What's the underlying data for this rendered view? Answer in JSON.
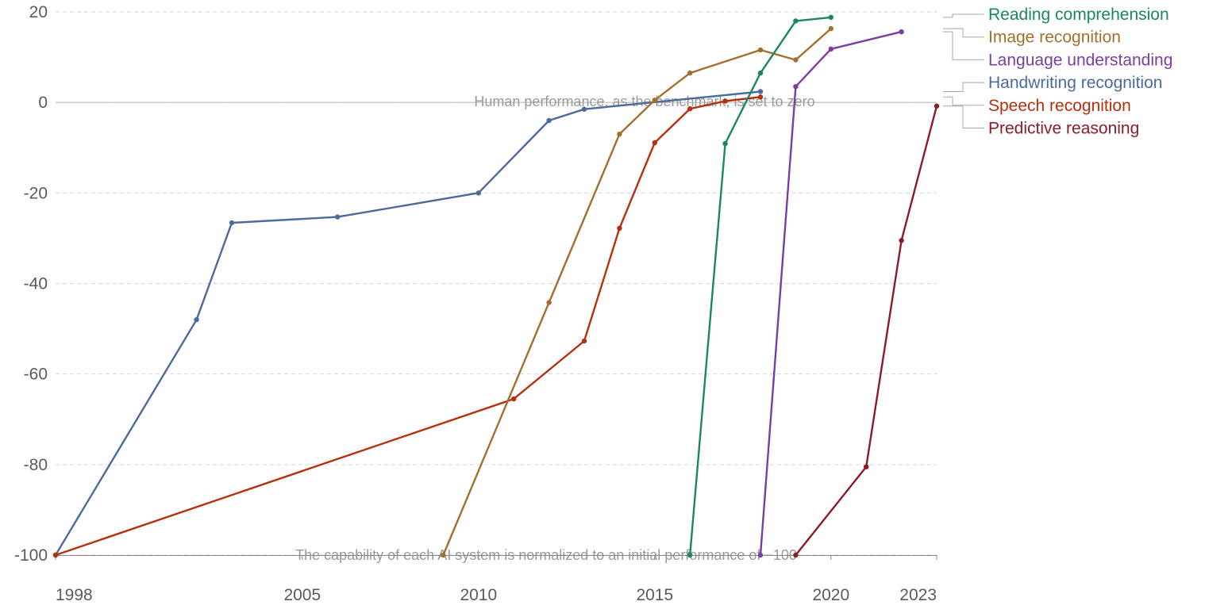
{
  "chart_data": {
    "type": "line",
    "title": "",
    "xlabel": "",
    "ylabel": "",
    "xlim": [
      1998,
      2023
    ],
    "ylim": [
      -100,
      20
    ],
    "x_ticks": [
      1998,
      2005,
      2010,
      2015,
      2020,
      2023
    ],
    "y_ticks": [
      -100,
      -80,
      -60,
      -40,
      -20,
      0,
      20
    ],
    "grid": "horizontal dashed",
    "legend_position": "right, labels at series line ends",
    "annotations": {
      "zero_line": "Human performance, as the benchmark, is set to zero",
      "baseline": "The capability of each AI system is normalized to an initial performance of −100"
    },
    "series": [
      {
        "name": "Handwriting recognition",
        "color": "#4c6a9c",
        "points": [
          [
            1998,
            -100
          ],
          [
            2002,
            -48
          ],
          [
            2003,
            -26.6
          ],
          [
            2006,
            -25.3
          ],
          [
            2010,
            -20
          ],
          [
            2012,
            -4
          ],
          [
            2013,
            -1.5
          ],
          [
            2018,
            2.4
          ]
        ]
      },
      {
        "name": "Speech recognition",
        "color": "#b5300f",
        "points": [
          [
            1998,
            -100
          ],
          [
            2011,
            -65.5
          ],
          [
            2013,
            -52.7
          ],
          [
            2014,
            -27.8
          ],
          [
            2015,
            -8.9
          ],
          [
            2016,
            -1.4
          ],
          [
            2017,
            0.3
          ],
          [
            2018,
            1.2
          ]
        ]
      },
      {
        "name": "Image recognition",
        "color": "#a2702d",
        "points": [
          [
            2009,
            -100
          ],
          [
            2012,
            -44.2
          ],
          [
            2014,
            -7
          ],
          [
            2015,
            0.5
          ],
          [
            2016,
            6.5
          ],
          [
            2018,
            11.6
          ],
          [
            2019,
            9.4
          ],
          [
            2020,
            16.3
          ]
        ]
      },
      {
        "name": "Reading comprehension",
        "color": "#19875f",
        "points": [
          [
            2016,
            -100
          ],
          [
            2017,
            -9.1
          ],
          [
            2018,
            6.5
          ],
          [
            2019,
            18
          ],
          [
            2020,
            18.8
          ]
        ]
      },
      {
        "name": "Language understanding",
        "color": "#7a3ea2",
        "points": [
          [
            2018,
            -100
          ],
          [
            2019,
            3.5
          ],
          [
            2020,
            11.8
          ],
          [
            2022,
            15.6
          ]
        ]
      },
      {
        "name": "Predictive reasoning",
        "color": "#8a1c2a",
        "points": [
          [
            2019,
            -100
          ],
          [
            2021,
            -80.5
          ],
          [
            2022,
            -30.5
          ],
          [
            2023,
            -0.8
          ]
        ]
      }
    ]
  },
  "legend": [
    {
      "label": "Reading comprehension",
      "color": "#19875f"
    },
    {
      "label": "Image recognition",
      "color": "#a2702d"
    },
    {
      "label": "Language understanding",
      "color": "#7a3ea2"
    },
    {
      "label": "Handwriting recognition",
      "color": "#4c6a9c"
    },
    {
      "label": "Speech recognition",
      "color": "#b5300f"
    },
    {
      "label": "Predictive reasoning",
      "color": "#8a1c2a"
    }
  ]
}
